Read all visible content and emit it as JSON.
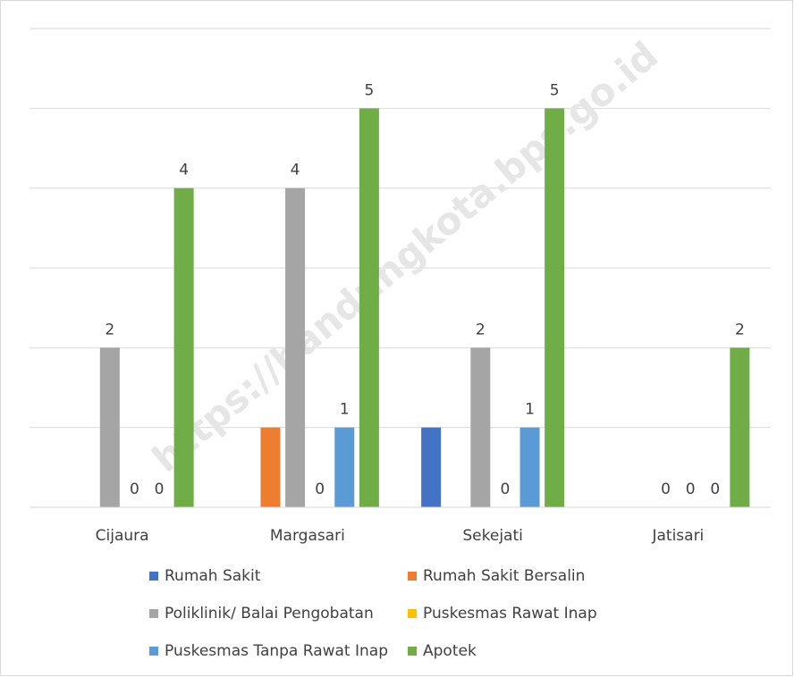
{
  "chart_data": {
    "type": "bar",
    "watermark": "https://bandungkota.bps.go.id",
    "categories": [
      "Cijaura",
      "Margasari",
      "Sekejati",
      "Jatisari"
    ],
    "series": [
      {
        "name": "Rumah Sakit",
        "color": "#4472c4",
        "values": [
          null,
          null,
          1,
          null
        ],
        "show_labels": false
      },
      {
        "name": "Rumah Sakit Bersalin",
        "color": "#ed7d31",
        "values": [
          null,
          1,
          null,
          null
        ],
        "show_labels": false
      },
      {
        "name": "Poliklinik/ Balai Pengobatan",
        "color": "#a5a5a5",
        "values": [
          2,
          4,
          2,
          0
        ],
        "show_labels": true
      },
      {
        "name": "Puskesmas Rawat Inap",
        "color": "#ffc000",
        "values": [
          0,
          0,
          0,
          0
        ],
        "show_labels": true
      },
      {
        "name": "Puskesmas Tanpa Rawat Inap",
        "color": "#5b9bd5",
        "values": [
          0,
          1,
          1,
          0
        ],
        "show_labels": true
      },
      {
        "name": "Apotek",
        "color": "#70ad47",
        "values": [
          4,
          5,
          5,
          2
        ],
        "show_labels": true
      }
    ],
    "ylim": [
      0,
      6
    ],
    "yticks": [
      0,
      1,
      2,
      3,
      4,
      5,
      6
    ],
    "ytick_labels": false,
    "grid": true,
    "legend": "bottom"
  }
}
